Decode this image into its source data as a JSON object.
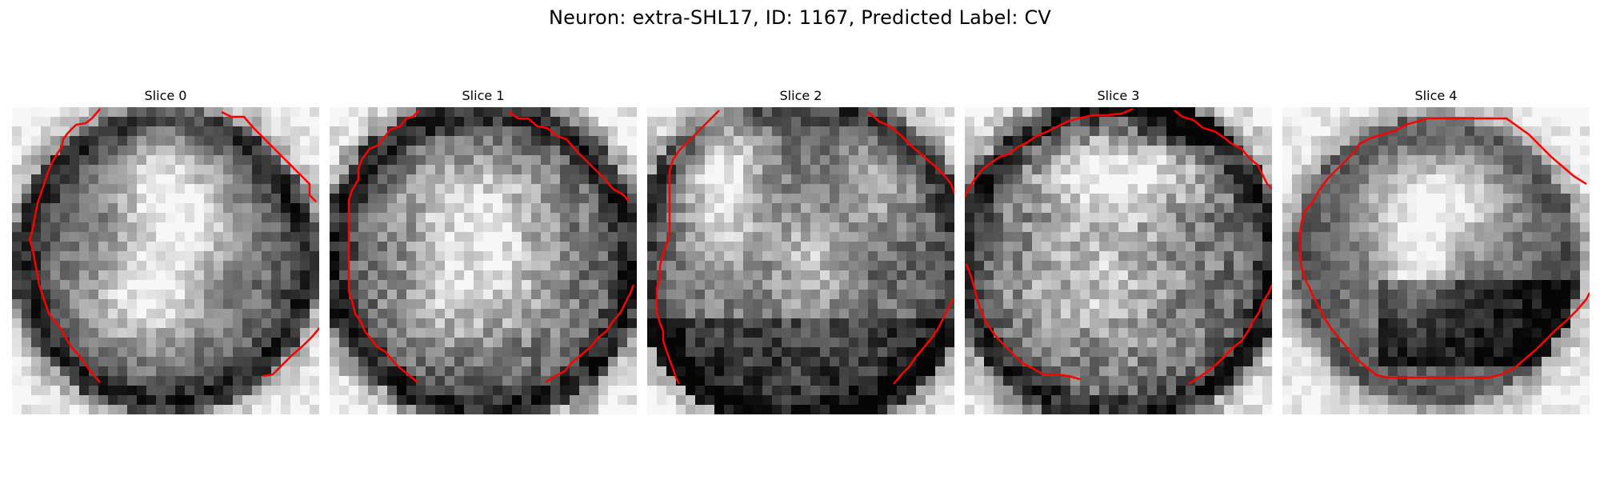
{
  "figure": {
    "title": "Neuron: extra-SHL17, ID: 1167, Predicted Label: CV",
    "contour_color": "#ff0000"
  },
  "slices": [
    {
      "title": "Slice 0"
    },
    {
      "title": "Slice 1"
    },
    {
      "title": "Slice 2"
    },
    {
      "title": "Slice 3"
    },
    {
      "title": "Slice 4"
    }
  ]
}
